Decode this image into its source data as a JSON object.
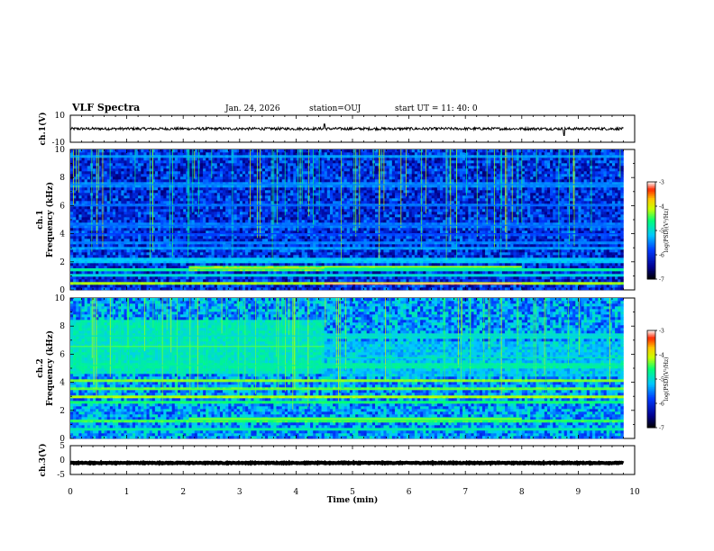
{
  "header": {
    "title": "VLF Spectra",
    "date": "Jan. 24, 2026",
    "station": "station=OUJ",
    "start": "start  UT =   11: 40: 0"
  },
  "chart_data": [
    {
      "type": "line",
      "panel": "ch1-waveform",
      "ylabel": "ch.1(V)",
      "ylim": [
        -10,
        10
      ],
      "yticks": [
        "10",
        "-10"
      ],
      "xlim": [
        0,
        10
      ],
      "trace_level": 0,
      "noise_amplitude": 1.0,
      "spikes": [
        {
          "t": 4.5,
          "v": 3.5
        },
        {
          "t": 8.75,
          "v": -5
        }
      ]
    },
    {
      "type": "heatmap",
      "panel": "ch1-spectrogram",
      "ylabel": "ch.1\nFrequency (kHz)",
      "ylim": [
        0,
        10
      ],
      "yticks": [
        "10",
        "8",
        "6",
        "4",
        "2",
        "0"
      ],
      "xlim": [
        0,
        9.8
      ],
      "colorbar": {
        "label": "log(PSD)(V²/Hz)",
        "ticks": [
          "-3",
          "-4",
          "-5",
          "-6",
          "-7"
        ],
        "range": [
          -7,
          -3
        ]
      },
      "bands": [
        {
          "f": 0.5,
          "level": -4.2
        },
        {
          "f": 1.0,
          "level": -5.0
        },
        {
          "f": 1.5,
          "level": -4.8
        },
        {
          "f": 2.1,
          "level": -5.2
        },
        {
          "f": 3.0,
          "level": -5.4
        },
        {
          "f": 3.4,
          "level": -5.5
        },
        {
          "f": 4.0,
          "level": -5.8
        },
        {
          "f": 4.6,
          "level": -5.6
        },
        {
          "f": 6.0,
          "level": -5.6
        },
        {
          "f": 7.5,
          "level": -5.5
        },
        {
          "f": 9.5,
          "level": -5.4
        }
      ],
      "segments": [
        {
          "t0": 2.1,
          "t1": 4.5,
          "f0": 1.3,
          "f1": 1.8,
          "level": -4.4
        },
        {
          "t0": 4.5,
          "t1": 8.0,
          "f0": 0.3,
          "f1": 0.6,
          "level": -3.6
        },
        {
          "t0": 4.5,
          "t1": 8.0,
          "f0": 1.5,
          "f1": 1.8,
          "level": -4.6
        }
      ],
      "background_level": -6.0
    },
    {
      "type": "heatmap",
      "panel": "ch2-spectrogram",
      "ylabel": "ch.2\nFrequency (kHz)",
      "ylim": [
        0,
        10
      ],
      "yticks": [
        "10",
        "8",
        "6",
        "4",
        "2",
        "0"
      ],
      "xlim": [
        0,
        9.8
      ],
      "colorbar": {
        "label": "log(PSD)(V²/Hz)",
        "ticks": [
          "-3",
          "-4",
          "-5",
          "-6",
          "-7"
        ],
        "range": [
          -7,
          -3
        ]
      },
      "bands": [
        {
          "f": 0.7,
          "level": -4.8
        },
        {
          "f": 1.3,
          "level": -4.5
        },
        {
          "f": 2.6,
          "level": -4.6
        },
        {
          "f": 3.0,
          "level": -4.2
        },
        {
          "f": 3.5,
          "level": -4.4
        },
        {
          "f": 4.1,
          "level": -4.3
        },
        {
          "f": 5.2,
          "level": -4.8
        },
        {
          "f": 7.3,
          "level": -5.0
        }
      ],
      "segments": [
        {
          "t0": 0.0,
          "t1": 4.5,
          "f0": 4.6,
          "f1": 8.5,
          "level": -4.9
        },
        {
          "t0": 4.5,
          "t1": 9.8,
          "f0": 4.5,
          "f1": 7.0,
          "level": -5.3
        },
        {
          "t0": 2.1,
          "t1": 8.0,
          "f0": 1.2,
          "f1": 1.6,
          "level": -4.7
        }
      ],
      "background_level": -5.4
    },
    {
      "type": "line",
      "panel": "ch3-waveform",
      "ylabel": "ch.3(V)",
      "ylim": [
        -5,
        5
      ],
      "yticks": [
        "5",
        "0",
        "-5"
      ],
      "xlim": [
        0,
        10
      ],
      "xlabel": "Time (min)",
      "xticks": [
        "0",
        "1",
        "2",
        "3",
        "4",
        "5",
        "6",
        "7",
        "8",
        "9",
        "10"
      ],
      "trace_level": -1,
      "noise_amplitude": 0.15
    }
  ]
}
